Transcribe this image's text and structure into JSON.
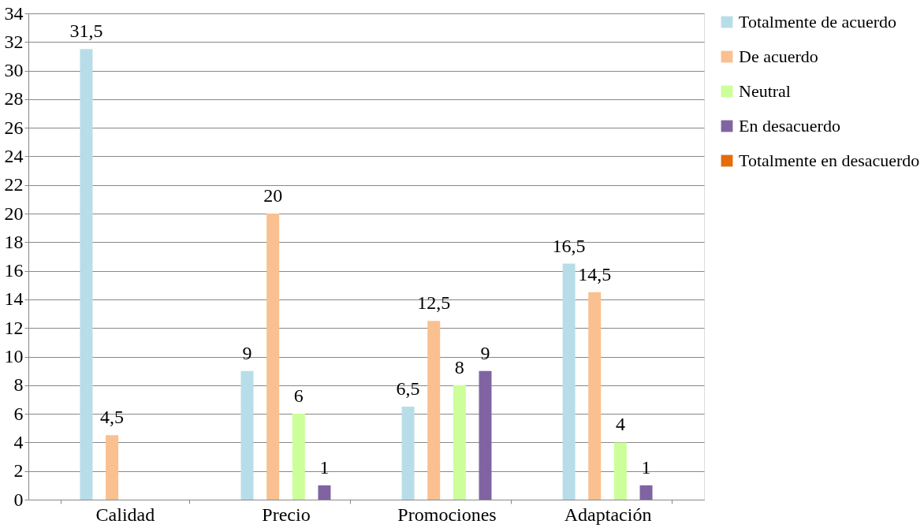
{
  "chart_data": {
    "type": "bar",
    "categories": [
      "Calidad",
      "Precio",
      "Promociones",
      "Adaptación"
    ],
    "series": [
      {
        "name": "Totalmente de acuerdo",
        "color": "#b7dee8",
        "values": [
          31.5,
          9,
          6.5,
          16.5
        ],
        "value_labels": [
          "31,5",
          "9",
          "6,5",
          "16,5"
        ]
      },
      {
        "name": "De acuerdo",
        "color": "#fac090",
        "values": [
          4.5,
          20,
          12.5,
          14.5
        ],
        "value_labels": [
          "4,5",
          "20",
          "12,5",
          "14,5"
        ]
      },
      {
        "name": "Neutral",
        "color": "#ccff99",
        "values": [
          null,
          6,
          8,
          4
        ],
        "value_labels": [
          null,
          "6",
          "8",
          "4"
        ]
      },
      {
        "name": "En desacuerdo",
        "color": "#8064a2",
        "values": [
          null,
          1,
          9,
          1
        ],
        "value_labels": [
          null,
          "1",
          "9",
          "1"
        ]
      },
      {
        "name": "Totalmente en desacuerdo",
        "color": "#e46c0a",
        "values": [
          null,
          null,
          null,
          null
        ]
      }
    ],
    "ylim": [
      0,
      34
    ],
    "yticks": [
      0,
      2,
      4,
      6,
      8,
      10,
      12,
      14,
      16,
      18,
      20,
      22,
      24,
      26,
      28,
      30,
      32,
      34
    ],
    "grid": "y",
    "legend": "right"
  }
}
